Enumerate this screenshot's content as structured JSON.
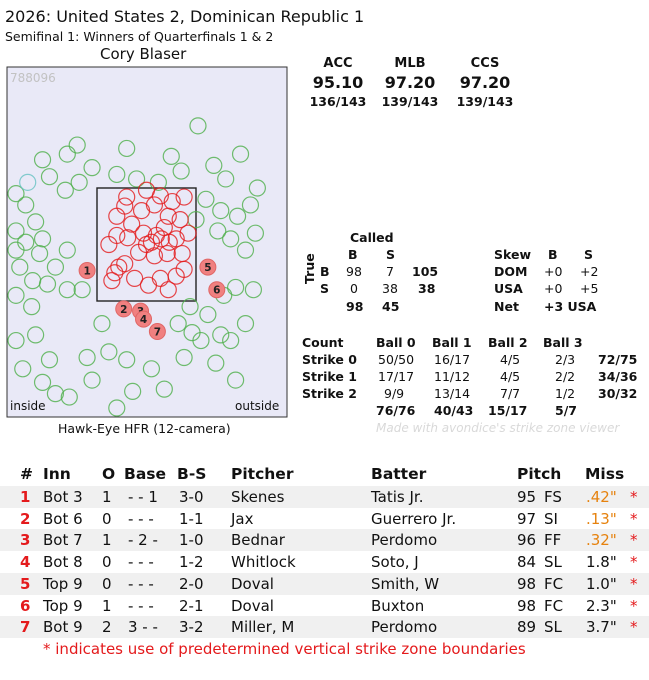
{
  "header": {
    "title": "2026: United States 2, Dominican Republic 1",
    "subtitle": "Semifinal 1: Winners of Quarterfinals 1 & 2",
    "umpire": "Cory Blaser"
  },
  "plot": {
    "id_label": "788096",
    "inside_label": "inside",
    "outside_label": "outside",
    "footer": "Hawk-Eye HFR (12-camera)"
  },
  "accuracy": [
    {
      "label": "ACC",
      "pct": "95.10",
      "frac": "136/143"
    },
    {
      "label": "MLB",
      "pct": "97.20",
      "frac": "139/143"
    },
    {
      "label": "CCS",
      "pct": "97.20",
      "frac": "139/143"
    }
  ],
  "called_table": {
    "title": "Called",
    "col_b": "B",
    "col_s": "S",
    "true_label": "True",
    "row_b": {
      "label": "B",
      "b": "98",
      "s": "7",
      "total": "105"
    },
    "row_s": {
      "label": "S",
      "b": "0",
      "s": "38",
      "total": "38"
    },
    "totals": {
      "b": "98",
      "s": "45"
    }
  },
  "skew_table": {
    "title": "Skew",
    "col_b": "B",
    "col_s": "S",
    "rows": [
      {
        "label": "DOM",
        "b": "+0",
        "s": "+2"
      },
      {
        "label": "USA",
        "b": "+0",
        "s": "+5"
      }
    ],
    "net_label": "Net",
    "net_value": "+3 USA"
  },
  "count_table": {
    "title": "Count",
    "columns": [
      "Ball 0",
      "Ball 1",
      "Ball 2",
      "Ball 3"
    ],
    "rows": [
      {
        "label": "Strike 0",
        "cells": [
          "50/50",
          "16/17",
          "4/5",
          "2/3"
        ],
        "total": "72/75"
      },
      {
        "label": "Strike 1",
        "cells": [
          "17/17",
          "11/12",
          "4/5",
          "2/2"
        ],
        "total": "34/36"
      },
      {
        "label": "Strike 2",
        "cells": [
          "9/9",
          "13/14",
          "7/7",
          "1/2"
        ],
        "total": "30/32"
      }
    ],
    "totals": [
      "76/76",
      "40/43",
      "15/17",
      "5/7"
    ]
  },
  "watermark": "Made with avondice's strike zone viewer",
  "missed_calls": {
    "headers": {
      "num": "#",
      "inn": "Inn",
      "outs": "O",
      "base": "Base",
      "bs": "B-S",
      "pitcher": "Pitcher",
      "batter": "Batter",
      "pitch": "Pitch",
      "miss": "Miss"
    },
    "rows": [
      {
        "num": "1",
        "inn": "Bot 3",
        "outs": "1",
        "base": "- - 1",
        "bs": "3-0",
        "pitcher": "Skenes",
        "batter": "Tatis Jr.",
        "speed": "95",
        "type": "FS",
        "miss": ".42\"",
        "star": "*",
        "miss_color": "#e6820e"
      },
      {
        "num": "2",
        "inn": "Bot 6",
        "outs": "0",
        "base": "- - -",
        "bs": "1-1",
        "pitcher": "Jax",
        "batter": "Guerrero Jr.",
        "speed": "97",
        "type": "SI",
        "miss": ".13\"",
        "star": "*",
        "miss_color": "#e6820e"
      },
      {
        "num": "3",
        "inn": "Bot 7",
        "outs": "1",
        "base": "- 2 -",
        "bs": "1-0",
        "pitcher": "Bednar",
        "batter": "Perdomo",
        "speed": "96",
        "type": "FF",
        "miss": ".32\"",
        "star": "*",
        "miss_color": "#e6820e"
      },
      {
        "num": "4",
        "inn": "Bot 8",
        "outs": "0",
        "base": "- - -",
        "bs": "1-2",
        "pitcher": "Whitlock",
        "batter": "Soto, J",
        "speed": "84",
        "type": "SL",
        "miss": "1.8\"",
        "star": "*",
        "miss_color": "#111111"
      },
      {
        "num": "5",
        "inn": "Top 9",
        "outs": "0",
        "base": "- - -",
        "bs": "2-0",
        "pitcher": "Doval",
        "batter": "Smith, W",
        "speed": "98",
        "type": "FC",
        "miss": "1.0\"",
        "star": "*",
        "miss_color": "#111111"
      },
      {
        "num": "6",
        "inn": "Top 9",
        "outs": "1",
        "base": "- - -",
        "bs": "2-1",
        "pitcher": "Doval",
        "batter": "Buxton",
        "speed": "98",
        "type": "FC",
        "miss": "2.3\"",
        "star": "*",
        "miss_color": "#111111"
      },
      {
        "num": "7",
        "inn": "Bot 9",
        "outs": "2",
        "base": "3 - -",
        "bs": "3-2",
        "pitcher": "Miller, M",
        "batter": "Perdomo",
        "speed": "89",
        "type": "SL",
        "miss": "3.7\"",
        "star": "*",
        "miss_color": "#111111"
      }
    ],
    "footnote": "* indicates use of predetermined vertical strike zone boundaries"
  },
  "chart_data": {
    "type": "scatter",
    "colors": {
      "ball": "#4daf4a",
      "strike": "#e41a1c",
      "missed": "#f08080",
      "other": "#66c2c2"
    },
    "zone": {
      "left": 0,
      "right": 1,
      "bottom": 0,
      "top": 1
    },
    "missed_points": [
      {
        "label": "1",
        "x": -0.1,
        "y": 0.27
      },
      {
        "label": "2",
        "x": 0.27,
        "y": -0.07
      },
      {
        "label": "3",
        "x": 0.44,
        "y": -0.09
      },
      {
        "label": "4",
        "x": 0.47,
        "y": -0.16
      },
      {
        "label": "5",
        "x": 1.12,
        "y": 0.3
      },
      {
        "label": "6",
        "x": 1.21,
        "y": 0.1
      },
      {
        "label": "7",
        "x": 0.61,
        "y": -0.27
      }
    ],
    "called_strikes": [
      [
        0.3,
        0.92
      ],
      [
        0.2,
        0.75
      ],
      [
        0.28,
        0.84
      ],
      [
        0.5,
        0.98
      ],
      [
        0.64,
        0.93
      ],
      [
        0.76,
        0.88
      ],
      [
        0.88,
        0.92
      ],
      [
        0.84,
        0.72
      ],
      [
        0.12,
        0.5
      ],
      [
        0.2,
        0.58
      ],
      [
        0.31,
        0.56
      ],
      [
        0.47,
        0.6
      ],
      [
        0.55,
        0.52
      ],
      [
        0.6,
        0.58
      ],
      [
        0.65,
        0.55
      ],
      [
        0.73,
        0.52
      ],
      [
        0.5,
        0.5
      ],
      [
        0.58,
        0.4
      ],
      [
        0.71,
        0.42
      ],
      [
        0.8,
        0.55
      ],
      [
        0.86,
        0.42
      ],
      [
        0.68,
        0.65
      ],
      [
        0.42,
        0.43
      ],
      [
        0.28,
        0.33
      ],
      [
        0.22,
        0.3
      ],
      [
        0.18,
        0.25
      ],
      [
        0.38,
        0.2
      ],
      [
        0.52,
        0.14
      ],
      [
        0.64,
        0.2
      ],
      [
        0.72,
        0.1
      ],
      [
        0.8,
        0.22
      ],
      [
        0.92,
        0.6
      ],
      [
        0.45,
        0.8
      ],
      [
        0.58,
        0.85
      ],
      [
        0.35,
        0.68
      ],
      [
        0.72,
        0.75
      ],
      [
        0.15,
        0.18
      ],
      [
        0.88,
        0.28
      ]
    ],
    "called_balls": [
      [
        -0.48,
        1.1
      ],
      [
        -0.32,
        0.98
      ],
      [
        -0.18,
        1.05
      ],
      [
        -0.05,
        1.18
      ],
      [
        -0.3,
        1.3
      ],
      [
        -0.55,
        1.25
      ],
      [
        -0.72,
        0.85
      ],
      [
        -0.62,
        0.7
      ],
      [
        -0.9,
        0.62
      ],
      [
        -0.72,
        0.52
      ],
      [
        -0.86,
        0.45
      ],
      [
        -0.55,
        0.55
      ],
      [
        -0.58,
        0.42
      ],
      [
        -0.42,
        0.3
      ],
      [
        -0.3,
        0.45
      ],
      [
        -0.78,
        0.3
      ],
      [
        -0.65,
        0.18
      ],
      [
        -0.5,
        0.15
      ],
      [
        -0.9,
        0.05
      ],
      [
        -0.66,
        -0.05
      ],
      [
        -0.3,
        0.1
      ],
      [
        -0.15,
        0.1
      ],
      [
        -0.62,
        -0.3
      ],
      [
        -0.48,
        -0.52
      ],
      [
        -0.75,
        -0.6
      ],
      [
        -0.55,
        -0.72
      ],
      [
        -0.42,
        -0.82
      ],
      [
        -0.28,
        -0.85
      ],
      [
        -0.1,
        -0.5
      ],
      [
        -0.05,
        -0.7
      ],
      [
        0.05,
        -0.2
      ],
      [
        0.12,
        -0.45
      ],
      [
        0.3,
        -0.52
      ],
      [
        0.36,
        -0.8
      ],
      [
        0.55,
        -0.6
      ],
      [
        0.68,
        -0.78
      ],
      [
        0.88,
        -0.5
      ],
      [
        0.96,
        -0.28
      ],
      [
        0.82,
        -0.2
      ],
      [
        0.94,
        -0.05
      ],
      [
        1.12,
        -0.12
      ],
      [
        1.25,
        -0.3
      ],
      [
        1.2,
        -0.55
      ],
      [
        1.4,
        -0.7
      ],
      [
        1.35,
        -0.35
      ],
      [
        1.5,
        -0.2
      ],
      [
        1.58,
        0.1
      ],
      [
        1.4,
        0.12
      ],
      [
        1.28,
        0.05
      ],
      [
        1.5,
        0.45
      ],
      [
        1.35,
        0.55
      ],
      [
        1.22,
        0.62
      ],
      [
        1.42,
        0.75
      ],
      [
        1.55,
        0.85
      ],
      [
        1.25,
        0.8
      ],
      [
        1.1,
        0.9
      ],
      [
        1.3,
        1.08
      ],
      [
        1.18,
        1.2
      ],
      [
        1.45,
        1.3
      ],
      [
        0.85,
        1.15
      ],
      [
        0.62,
        1.05
      ],
      [
        0.4,
        1.08
      ],
      [
        0.2,
        1.12
      ],
      [
        0.75,
        1.28
      ],
      [
        1.6,
        0.6
      ],
      [
        1.02,
        1.55
      ],
      [
        0.3,
        1.35
      ],
      [
        -0.2,
        1.38
      ],
      [
        -0.95,
        0.95
      ],
      [
        1.0,
        0.72
      ],
      [
        1.62,
        1.0
      ],
      [
        0.2,
        -0.98
      ],
      [
        -0.85,
        -0.35
      ],
      [
        1.05,
        -0.35
      ]
    ],
    "other_points": [
      [
        -0.7,
        1.05
      ]
    ]
  }
}
